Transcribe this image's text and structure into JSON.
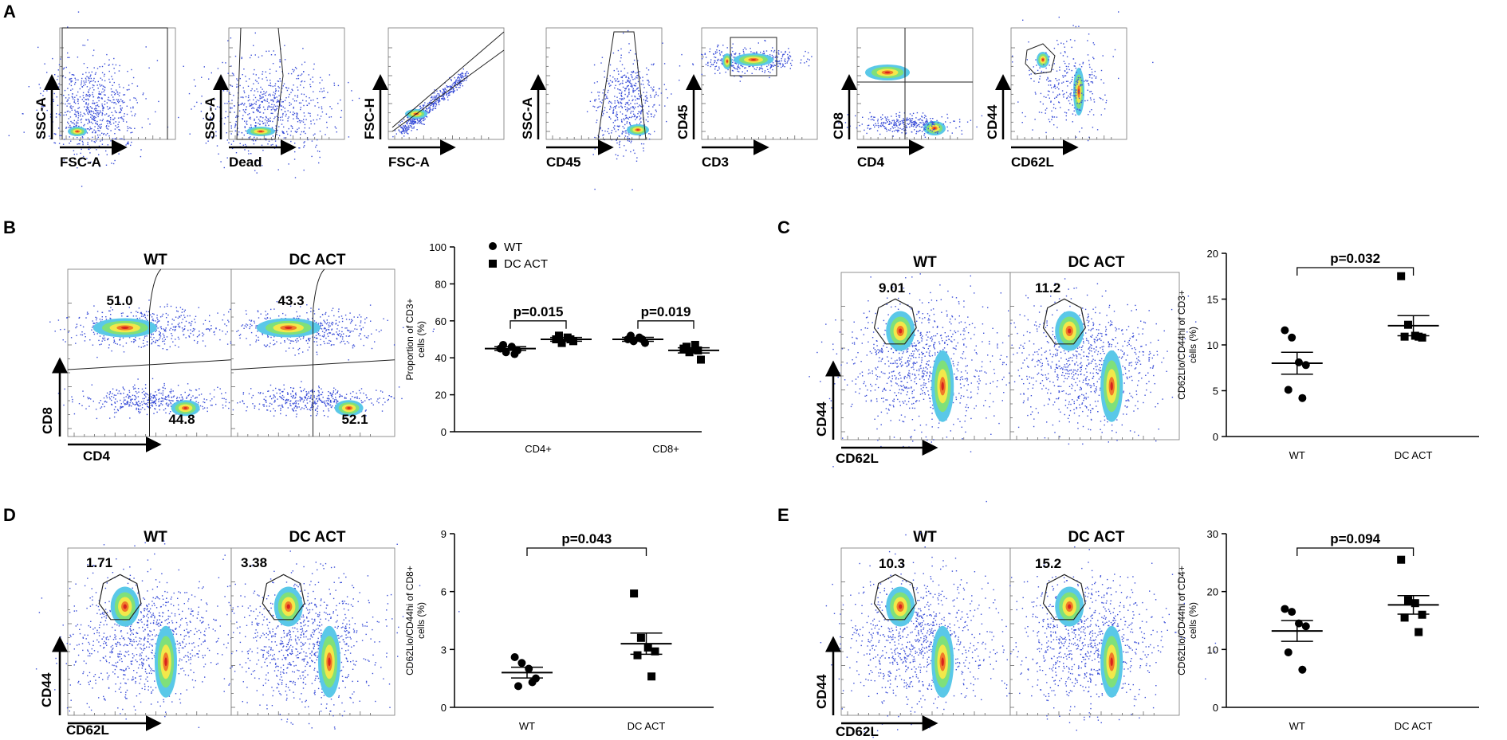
{
  "panel_labels": [
    "A",
    "B",
    "C",
    "D",
    "E"
  ],
  "gating": [
    {
      "x": "FSC-A",
      "y": "SSC-A"
    },
    {
      "x": "Dead",
      "y": "SSC-A"
    },
    {
      "x": "FSC-A",
      "y": "FSC-H"
    },
    {
      "x": "CD45",
      "y": "SSC-A"
    },
    {
      "x": "CD3",
      "y": "CD45"
    },
    {
      "x": "CD4",
      "y": "CD8"
    },
    {
      "x": "CD62L",
      "y": "CD44"
    }
  ],
  "flow_groups": [
    "WT",
    "DC ACT"
  ],
  "flow": {
    "B": {
      "x": "CD4",
      "y": "CD8",
      "WT": [
        "51.0",
        "44.8"
      ],
      "DC ACT": [
        "43.3",
        "52.1"
      ]
    },
    "C": {
      "x": "CD62L",
      "y": "CD44",
      "WT": [
        "9.01"
      ],
      "DC ACT": [
        "11.2"
      ]
    },
    "D": {
      "x": "CD62L",
      "y": "CD44",
      "WT": [
        "1.71"
      ],
      "DC ACT": [
        "3.38"
      ]
    },
    "E": {
      "x": "CD62L",
      "y": "CD44",
      "WT": [
        "10.3"
      ],
      "DC ACT": [
        "15.2"
      ]
    }
  },
  "chart_data": [
    {
      "panel": "B",
      "type": "scatter",
      "categories": [
        "CD4+",
        "CD8+"
      ],
      "ylabel_line1": "Proportion of CD3+",
      "ylabel_line2": "cells (%)",
      "ylim": [
        0,
        100
      ],
      "yticks": [
        "0",
        "20",
        "40",
        "60",
        "80",
        "100"
      ],
      "legend": [
        "WT",
        "DC ACT"
      ],
      "series": [
        {
          "name": "WT",
          "values": [
            [
              45,
              43,
              46,
              44,
              47,
              42
            ],
            [
              50,
              49,
              51,
              48,
              52,
              50
            ]
          ],
          "mean": [
            45,
            50
          ],
          "sem": [
            1.0,
            1.1
          ]
        },
        {
          "name": "DC ACT",
          "values": [
            [
              50,
              48,
              51,
              49,
              52,
              50
            ],
            [
              45,
              43,
              47,
              39,
              46,
              44
            ]
          ],
          "mean": [
            50,
            44
          ],
          "sem": [
            1.0,
            1.4
          ]
        }
      ],
      "pvalues": [
        "p=0.015",
        "p=0.019"
      ]
    },
    {
      "panel": "C",
      "type": "scatter",
      "categories": [
        "WT",
        "DC ACT"
      ],
      "ylabel_line1": "CD62Llo/CD44hi of CD3+",
      "ylabel_line2": "cells (%)",
      "ylim": [
        0,
        20
      ],
      "yticks": [
        "0",
        "5",
        "10",
        "15",
        "20"
      ],
      "values": [
        [
          11.6,
          10.8,
          8.1,
          7.8,
          5.1,
          4.2
        ],
        [
          17.5,
          12.2,
          11.0,
          10.8,
          10.9,
          10.9
        ]
      ],
      "mean": [
        8.0,
        12.1
      ],
      "sem": [
        1.2,
        1.1
      ],
      "pvalue": "p=0.032"
    },
    {
      "panel": "D",
      "type": "scatter",
      "categories": [
        "WT",
        "DC ACT"
      ],
      "ylabel_line1": "CD62Llo/CD44hi of CD8+",
      "ylabel_line2": "cells (%)",
      "ylim": [
        0,
        9
      ],
      "yticks": [
        "0",
        "3",
        "6",
        "9"
      ],
      "values": [
        [
          2.6,
          2.3,
          2.0,
          1.5,
          1.1,
          1.3
        ],
        [
          5.9,
          3.6,
          3.1,
          2.9,
          2.7,
          1.6
        ]
      ],
      "mean": [
        1.8,
        3.3
      ],
      "sem": [
        0.28,
        0.55
      ],
      "pvalue": "p=0.043"
    },
    {
      "panel": "E",
      "type": "scatter",
      "categories": [
        "WT",
        "DC ACT"
      ],
      "ylabel_line1": "CD62Llo/CD44hi of CD4+",
      "ylabel_line2": "cells (%)",
      "ylim": [
        0,
        30
      ],
      "yticks": [
        "0",
        "10",
        "20",
        "30"
      ],
      "values": [
        [
          17.0,
          16.5,
          14.5,
          14.0,
          9.5,
          6.5
        ],
        [
          25.5,
          18.5,
          18.0,
          16.0,
          15.5,
          13.0
        ]
      ],
      "mean": [
        13.2,
        17.7
      ],
      "sem": [
        1.8,
        1.6
      ],
      "pvalue": "p=0.094"
    }
  ]
}
